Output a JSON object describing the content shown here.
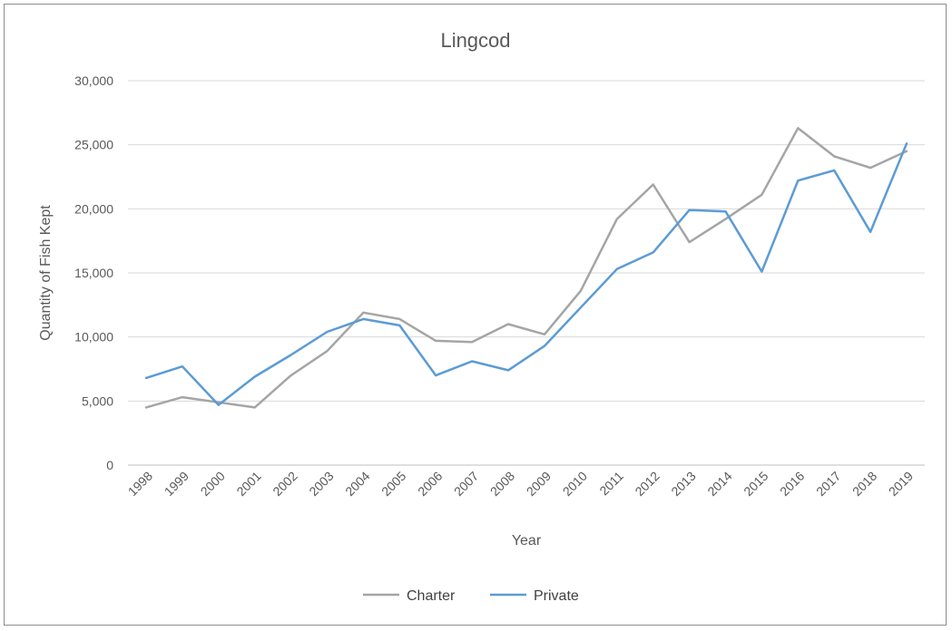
{
  "chart_data": {
    "type": "line",
    "title": "Lingcod",
    "xlabel": "Year",
    "ylabel": "Quantity of Fish Kept",
    "ylim": [
      0,
      30000
    ],
    "yticks": [
      "0",
      "5,000",
      "10,000",
      "15,000",
      "20,000",
      "25,000",
      "30,000"
    ],
    "grid": true,
    "legend_position": "bottom",
    "categories": [
      "1998",
      "1999",
      "2000",
      "2001",
      "2002",
      "2003",
      "2004",
      "2005",
      "2006",
      "2007",
      "2008",
      "2009",
      "2010",
      "2011",
      "2012",
      "2013",
      "2014",
      "2015",
      "2016",
      "2017",
      "2018",
      "2019"
    ],
    "series": [
      {
        "name": "Charter",
        "color": "#a5a5a5",
        "values": [
          4500,
          5300,
          4900,
          4500,
          7000,
          8900,
          11900,
          11400,
          9700,
          9600,
          11000,
          10200,
          13600,
          19200,
          21900,
          17400,
          19200,
          21100,
          26300,
          24100,
          23200,
          24500
        ]
      },
      {
        "name": "Private",
        "color": "#5b9bd5",
        "values": [
          6800,
          7700,
          4700,
          6900,
          8600,
          10400,
          11400,
          10900,
          7000,
          8100,
          7400,
          9300,
          12300,
          15300,
          16600,
          19900,
          19800,
          15100,
          22200,
          23000,
          18200,
          25100
        ]
      }
    ]
  }
}
